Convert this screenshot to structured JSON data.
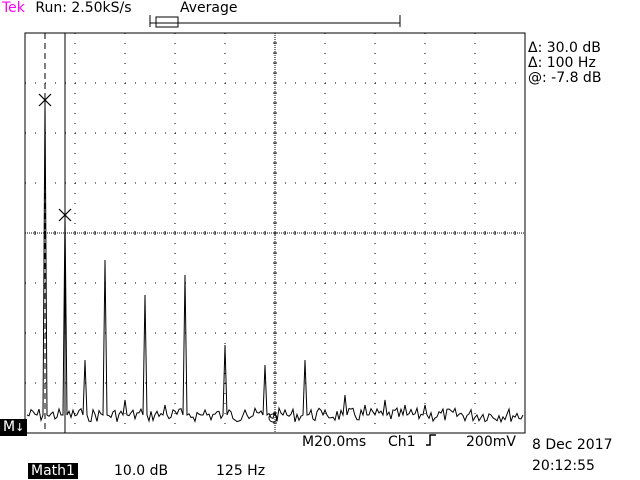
{
  "header": {
    "brand": "Tek",
    "acq_status": "Run: 2.50kS/s",
    "acq_mode": "Average"
  },
  "cursor_readout": {
    "delta_amplitude": "Δ: 30.0 dB",
    "delta_frequency": "Δ: 100 Hz",
    "at_value": "@: -7.8 dB"
  },
  "bottom_bar": {
    "horizontal_scale": "M20.0ms",
    "trigger_source": "Ch1",
    "trigger_level": "200mV",
    "date": "8 Dec 2017",
    "time": "20:12:55"
  },
  "math_bar": {
    "label": "Math1",
    "vertical_scale": "10.0 dB",
    "horizontal_scale": "125 Hz"
  },
  "markers": {
    "math_reference": "M"
  },
  "colors": {
    "brand": "#ff00ff",
    "trace": "#000000",
    "graticule": "#000000",
    "background": "#ffffff"
  },
  "spectrum": {
    "harmonic_spacing_hz": 50,
    "freq_span_hz": 1250,
    "db_per_div": 10,
    "vertical_divs": 8,
    "horizontal_divs": 10,
    "peaks_db_above_floor": [
      63,
      40,
      11,
      31,
      3,
      24,
      2,
      28,
      1,
      14,
      1,
      10,
      1,
      11,
      1,
      4,
      2,
      3,
      2,
      2
    ]
  }
}
